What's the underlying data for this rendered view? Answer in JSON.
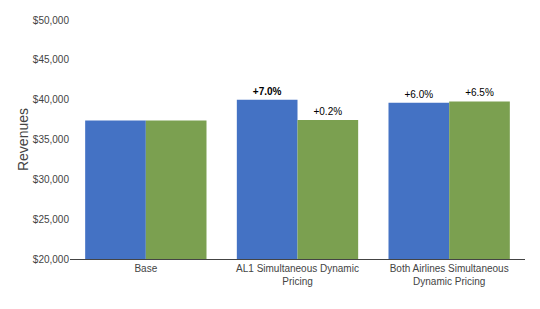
{
  "chart_data": {
    "type": "bar",
    "categories": [
      "Base",
      "AL1 Simultaneous Dynamic\nPricing",
      "Both Airlines Simultaneous\nDynamic Pricing"
    ],
    "series": [
      {
        "color": "#4472C4",
        "values": [
          37383,
          40000,
          39626
        ]
      },
      {
        "color": "#7BA050",
        "values": [
          37383,
          37458,
          39776
        ]
      }
    ],
    "annotations": [
      {
        "text": "+7.0%",
        "category": 1,
        "series": 0,
        "bold": true
      },
      {
        "text": "+0.2%",
        "category": 1,
        "series": 1,
        "bold": false
      },
      {
        "text": "+6.0%",
        "category": 2,
        "series": 0,
        "bold": false
      },
      {
        "text": "+6.5%",
        "category": 2,
        "series": 1,
        "bold": false
      }
    ],
    "ylabel": "Revenues",
    "ylim": [
      20000,
      50000
    ],
    "yticks": [
      {
        "value": 20000,
        "label": "$20,000"
      },
      {
        "value": 25000,
        "label": "$25,000"
      },
      {
        "value": 30000,
        "label": "$30,000"
      },
      {
        "value": 35000,
        "label": "$35,000"
      },
      {
        "value": 40000,
        "label": "$40,000"
      },
      {
        "value": 45000,
        "label": "$45,000"
      },
      {
        "value": 50000,
        "label": "$50,000"
      }
    ],
    "grid": false
  }
}
